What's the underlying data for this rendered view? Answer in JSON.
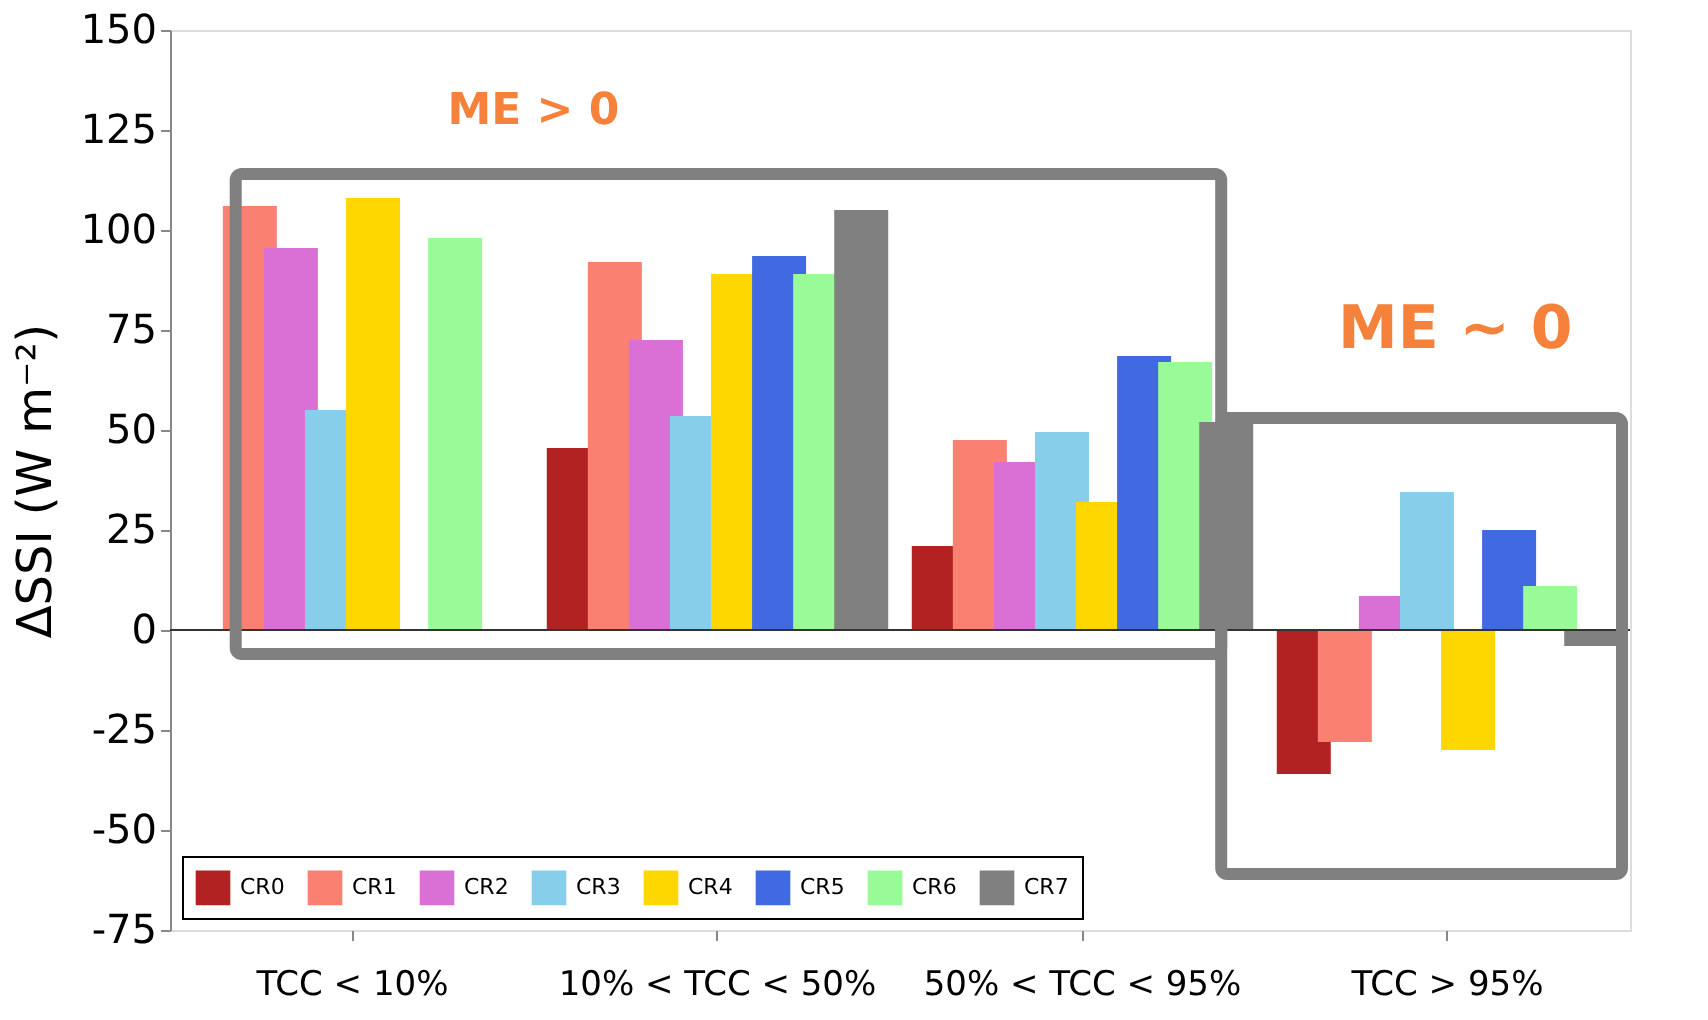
{
  "chart_data": {
    "type": "bar",
    "categories": [
      "TCC < 10%",
      "10% < TCC < 50%",
      "50% < TCC < 95%",
      "TCC > 95%"
    ],
    "ylabel": "ΔSSI (W m⁻²)",
    "ylim": [
      -75,
      150
    ],
    "yticks": [
      -75,
      -50,
      -25,
      0,
      25,
      50,
      75,
      100,
      125,
      150
    ],
    "grid": false,
    "legend": "bottom left",
    "ref_lines": [
      {
        "axis": "y",
        "value": 0,
        "color": "#333333"
      }
    ],
    "annotations": [
      "ME > 0",
      "ME ~ 0"
    ],
    "series": [
      {
        "name": "CR0",
        "color": "#b22222",
        "values": [
          null,
          45.5,
          21,
          -36
        ]
      },
      {
        "name": "CR1",
        "color": "#fa8072",
        "values": [
          106,
          92,
          47.5,
          -28
        ]
      },
      {
        "name": "CR2",
        "color": "#da70d6",
        "values": [
          95.5,
          72.5,
          42,
          8.5
        ]
      },
      {
        "name": "CR3",
        "color": "#87ceeb",
        "values": [
          55,
          53.5,
          49.5,
          34.5
        ]
      },
      {
        "name": "CR4",
        "color": "#ffd700",
        "values": [
          108,
          89,
          32,
          -30
        ]
      },
      {
        "name": "CR5",
        "color": "#4169e1",
        "values": [
          null,
          93.5,
          68.5,
          25
        ]
      },
      {
        "name": "CR6",
        "color": "#98fb98",
        "values": [
          98,
          89,
          67,
          11
        ]
      },
      {
        "name": "CR7",
        "color": "#808080",
        "values": [
          null,
          105,
          52,
          -4
        ]
      }
    ]
  }
}
